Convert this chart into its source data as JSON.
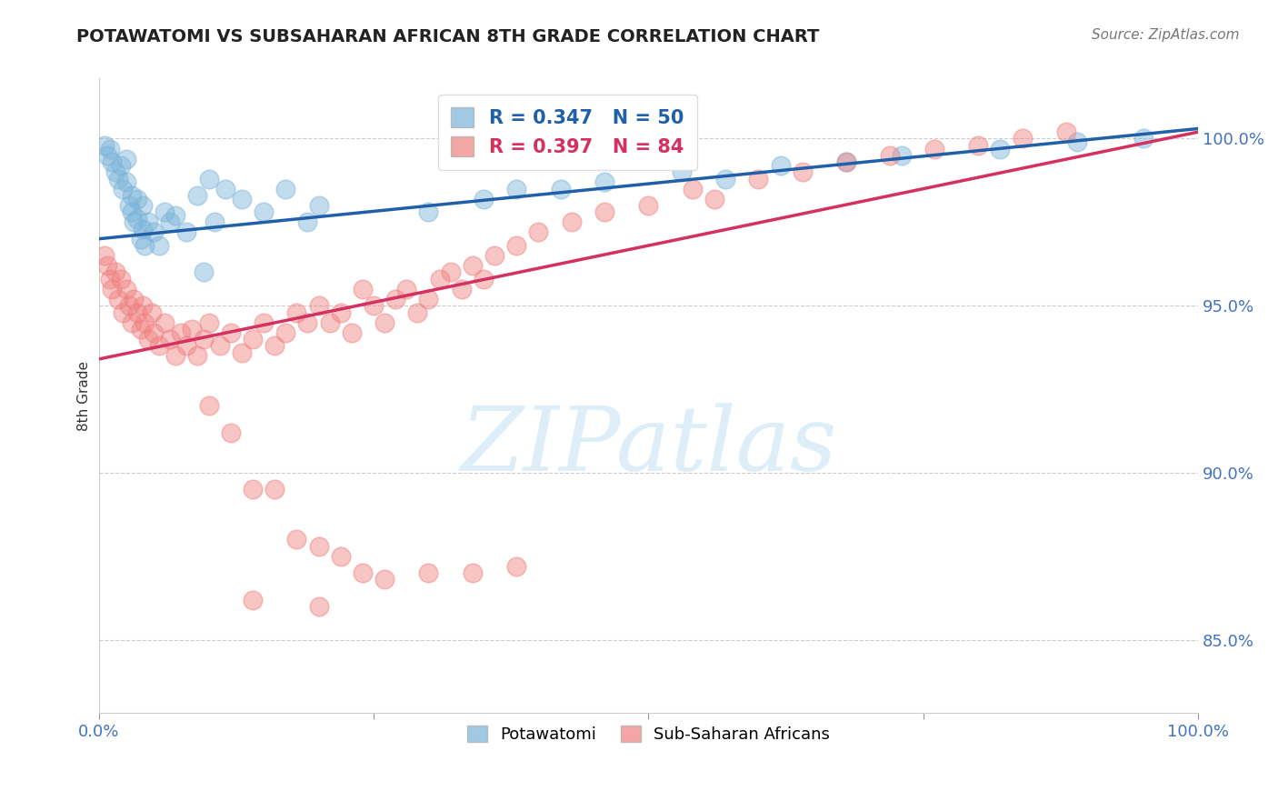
{
  "title": "POTAWATOMI VS SUBSAHARAN AFRICAN 8TH GRADE CORRELATION CHART",
  "source_text": "Source: ZipAtlas.com",
  "ylabel": "8th Grade",
  "xmin": 0.0,
  "xmax": 1.0,
  "ymin": 0.828,
  "ymax": 1.018,
  "yticks": [
    0.85,
    0.9,
    0.95,
    1.0
  ],
  "ytick_labels": [
    "85.0%",
    "90.0%",
    "95.0%",
    "100.0%"
  ],
  "legend_label1": "Potawatomi",
  "legend_label2": "Sub-Saharan Africans",
  "R1": 0.347,
  "N1": 50,
  "R2": 0.397,
  "N2": 84,
  "color_blue": "#7ab3d9",
  "color_pink": "#f08080",
  "line_color_blue": "#2060a8",
  "line_color_pink": "#d43060",
  "background_color": "#ffffff",
  "watermark_text": "ZIPatlas",
  "watermark_color": "#ddeef8",
  "blue_line_x0": 0.0,
  "blue_line_y0": 0.97,
  "blue_line_x1": 1.0,
  "blue_line_y1": 1.003,
  "pink_line_x0": 0.0,
  "pink_line_y0": 0.934,
  "pink_line_x1": 1.0,
  "pink_line_y1": 1.002,
  "blue_x": [
    0.005,
    0.008,
    0.01,
    0.012,
    0.015,
    0.018,
    0.02,
    0.022,
    0.025,
    0.025,
    0.028,
    0.03,
    0.03,
    0.032,
    0.035,
    0.035,
    0.038,
    0.04,
    0.04,
    0.042,
    0.045,
    0.05,
    0.055,
    0.06,
    0.065,
    0.07,
    0.08,
    0.09,
    0.1,
    0.115,
    0.13,
    0.15,
    0.17,
    0.19,
    0.095,
    0.105,
    0.2,
    0.3,
    0.35,
    0.38,
    0.42,
    0.46,
    0.53,
    0.57,
    0.62,
    0.68,
    0.73,
    0.82,
    0.89,
    0.95
  ],
  "blue_y": [
    0.998,
    0.995,
    0.997,
    0.993,
    0.99,
    0.988,
    0.992,
    0.985,
    0.987,
    0.994,
    0.98,
    0.978,
    0.983,
    0.975,
    0.982,
    0.976,
    0.97,
    0.973,
    0.98,
    0.968,
    0.975,
    0.972,
    0.968,
    0.978,
    0.975,
    0.977,
    0.972,
    0.983,
    0.988,
    0.985,
    0.982,
    0.978,
    0.985,
    0.975,
    0.96,
    0.975,
    0.98,
    0.978,
    0.982,
    0.985,
    0.985,
    0.987,
    0.99,
    0.988,
    0.992,
    0.993,
    0.995,
    0.997,
    0.999,
    1.0
  ],
  "pink_x": [
    0.005,
    0.008,
    0.01,
    0.012,
    0.015,
    0.018,
    0.02,
    0.022,
    0.025,
    0.028,
    0.03,
    0.032,
    0.035,
    0.038,
    0.04,
    0.042,
    0.045,
    0.048,
    0.05,
    0.055,
    0.06,
    0.065,
    0.07,
    0.075,
    0.08,
    0.085,
    0.09,
    0.095,
    0.1,
    0.11,
    0.12,
    0.13,
    0.14,
    0.15,
    0.16,
    0.17,
    0.18,
    0.19,
    0.2,
    0.21,
    0.22,
    0.23,
    0.24,
    0.25,
    0.26,
    0.27,
    0.28,
    0.29,
    0.3,
    0.31,
    0.32,
    0.33,
    0.34,
    0.35,
    0.36,
    0.38,
    0.4,
    0.43,
    0.46,
    0.5,
    0.54,
    0.56,
    0.6,
    0.64,
    0.68,
    0.72,
    0.76,
    0.8,
    0.84,
    0.88,
    0.1,
    0.12,
    0.14,
    0.16,
    0.18,
    0.2,
    0.22,
    0.24,
    0.26,
    0.3,
    0.34,
    0.38,
    0.14,
    0.2
  ],
  "pink_y": [
    0.965,
    0.962,
    0.958,
    0.955,
    0.96,
    0.952,
    0.958,
    0.948,
    0.955,
    0.95,
    0.945,
    0.952,
    0.948,
    0.943,
    0.95,
    0.945,
    0.94,
    0.948,
    0.942,
    0.938,
    0.945,
    0.94,
    0.935,
    0.942,
    0.938,
    0.943,
    0.935,
    0.94,
    0.945,
    0.938,
    0.942,
    0.936,
    0.94,
    0.945,
    0.938,
    0.942,
    0.948,
    0.945,
    0.95,
    0.945,
    0.948,
    0.942,
    0.955,
    0.95,
    0.945,
    0.952,
    0.955,
    0.948,
    0.952,
    0.958,
    0.96,
    0.955,
    0.962,
    0.958,
    0.965,
    0.968,
    0.972,
    0.975,
    0.978,
    0.98,
    0.985,
    0.982,
    0.988,
    0.99,
    0.993,
    0.995,
    0.997,
    0.998,
    1.0,
    1.002,
    0.92,
    0.912,
    0.895,
    0.895,
    0.88,
    0.878,
    0.875,
    0.87,
    0.868,
    0.87,
    0.87,
    0.872,
    0.862,
    0.86
  ]
}
